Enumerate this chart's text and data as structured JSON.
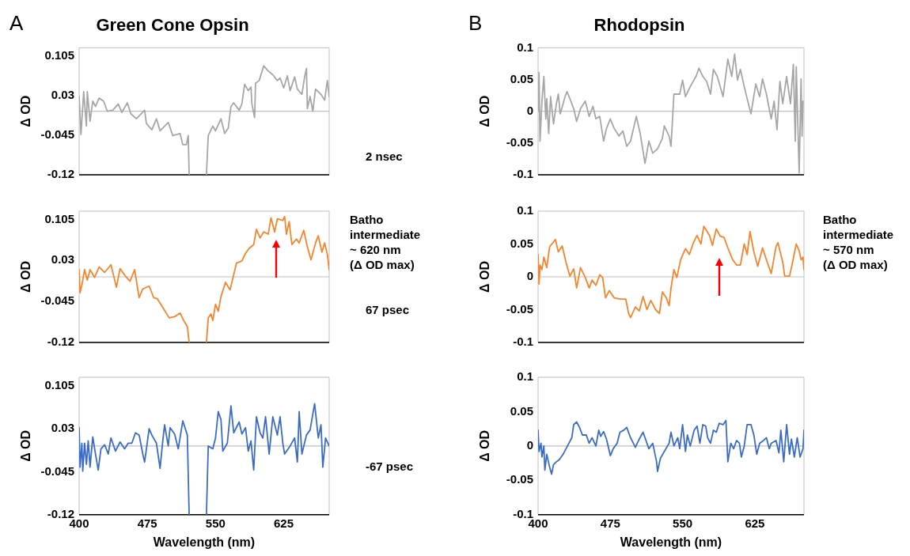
{
  "chart_data": [
    {
      "type": "line",
      "title": "Green Cone Opsin",
      "ylabel": "Δ OD",
      "color": "#a6a6a6",
      "tick_labels": "y",
      "xlim": [
        400,
        675
      ],
      "xticks": [
        400,
        475,
        550,
        625
      ],
      "ylim": [
        -0.12,
        0.12
      ],
      "yticks": [
        -0.12,
        -0.045,
        0.03,
        0.105
      ],
      "ref_lines": [
        {
          "axis": "y",
          "value": 0,
          "color": "#bfbfbf"
        }
      ],
      "annotations": [
        "A",
        "2 nsec"
      ],
      "x": [
        400,
        402,
        405,
        408,
        409,
        412,
        415,
        418,
        422,
        427,
        431,
        437,
        443,
        447,
        453,
        457,
        463,
        472,
        474,
        480,
        485,
        489,
        498,
        503,
        511,
        514,
        518,
        520,
        521,
        530,
        540,
        542,
        547,
        550,
        556,
        560,
        564,
        567,
        570,
        576,
        579,
        582,
        586,
        589,
        590,
        593,
        594,
        598,
        603,
        608,
        613,
        618,
        621,
        625,
        629,
        632,
        637,
        640,
        645,
        648,
        650,
        651,
        654,
        657,
        660,
        666,
        670,
        673,
        675
      ],
      "values": [
        0.028,
        -0.044,
        0.037,
        -0.028,
        0.037,
        -0.019,
        0.019,
        0.009,
        0.025,
        0.019,
        0,
        0.002,
        0.014,
        -0.002,
        0.016,
        -0.005,
        -0.014,
        0.002,
        -0.023,
        -0.035,
        -0.014,
        -0.037,
        -0.021,
        -0.046,
        -0.042,
        -0.063,
        -0.063,
        -0.046,
        -0.12,
        null,
        -0.12,
        -0.046,
        -0.028,
        -0.037,
        -0.014,
        -0.042,
        -0.032,
        0.009,
        0.016,
        0.002,
        0.014,
        0.051,
        0.039,
        0.046,
        0.014,
        -0.012,
        0.053,
        0.058,
        0.086,
        0.076,
        0.069,
        0.058,
        0.063,
        0.044,
        0.067,
        0.039,
        0.065,
        0.042,
        0.032,
        0.065,
        0.081,
        0.005,
        0.028,
        0,
        0.042,
        0.032,
        0.021,
        0.058,
        0.028
      ]
    },
    {
      "type": "line",
      "title": "Rhodopsin",
      "ylabel": "Δ OD",
      "color": "#a6a6a6",
      "tick_labels": "y",
      "xlim": [
        400,
        676
      ],
      "xticks": [
        400,
        475,
        550,
        625
      ],
      "ylim": [
        -0.1,
        0.1
      ],
      "yticks": [
        -0.1,
        -0.05,
        0,
        0.05,
        0.1
      ],
      "ref_lines": [
        {
          "axis": "y",
          "value": 0,
          "color": "#bfbfbf"
        }
      ],
      "annotations": [
        "B"
      ],
      "x": [
        400,
        401,
        402,
        404,
        406,
        408,
        409,
        411,
        413,
        416,
        419,
        421,
        423,
        428,
        430,
        433,
        437,
        440,
        444,
        449,
        453,
        457,
        460,
        464,
        468,
        471,
        475,
        479,
        484,
        488,
        492,
        496,
        502,
        506,
        511,
        515,
        519,
        524,
        529,
        531,
        536,
        538,
        541,
        547,
        550,
        553,
        558,
        564,
        567,
        571,
        575,
        579,
        582,
        586,
        592,
        597,
        601,
        604,
        607,
        610,
        614,
        617,
        621,
        626,
        630,
        633,
        637,
        642,
        645,
        648,
        651,
        654,
        658,
        662,
        665,
        667,
        668,
        671,
        673,
        674,
        675
      ],
      "values": [
        0,
        0.061,
        -0.047,
        0.016,
        0.055,
        -0.012,
        0.02,
        -0.035,
        0.023,
        -0.02,
        0.012,
        0.027,
        -0.004,
        0.023,
        0.031,
        0.02,
        0.004,
        -0.016,
        0.004,
        0.016,
        -0.008,
        0.008,
        -0.012,
        -0.008,
        -0.047,
        -0.027,
        -0.012,
        -0.027,
        -0.039,
        -0.031,
        -0.055,
        -0.047,
        -0.008,
        -0.035,
        -0.082,
        -0.047,
        -0.066,
        -0.059,
        -0.043,
        -0.023,
        -0.039,
        -0.055,
        0.027,
        0.027,
        0.049,
        0.023,
        0.039,
        0.055,
        0.068,
        0.055,
        0.047,
        0.027,
        0.066,
        0.055,
        0.023,
        0.082,
        0.055,
        0.09,
        0.049,
        0.066,
        0.039,
        0.02,
        -0.004,
        0.043,
        0.023,
        0.051,
        0.027,
        -0.012,
        0.016,
        -0.029,
        0.047,
        0.012,
        0.055,
        0.012,
        0.074,
        -0.047,
        0.07,
        -0.097,
        0.051,
        -0.039,
        0.016
      ]
    },
    {
      "type": "line",
      "ylabel": "Δ OD",
      "color": "#f5842c",
      "tick_labels": "y",
      "xlim": [
        400,
        675
      ],
      "xticks": [
        400,
        475,
        550,
        625
      ],
      "ylim": [
        -0.12,
        0.12
      ],
      "yticks": [
        -0.12,
        -0.045,
        0.03,
        0.105
      ],
      "ref_lines": [
        {
          "axis": "y",
          "value": 0,
          "color": "#bfbfbf"
        }
      ],
      "annotations": [
        "Batho\nintermediate\n~ 620 nm\n(Δ OD max)",
        "67 psec"
      ],
      "x": [
        400,
        401,
        403,
        406,
        409,
        412,
        417,
        422,
        428,
        435,
        441,
        445,
        451,
        456,
        461,
        466,
        470,
        477,
        482,
        486,
        492,
        499,
        505,
        511,
        515,
        519,
        521,
        530,
        540,
        542,
        545,
        547,
        550,
        553,
        556,
        561,
        566,
        570,
        573,
        579,
        583,
        587,
        592,
        595,
        599,
        603,
        608,
        611,
        615,
        618,
        624,
        626,
        628,
        631,
        634,
        639,
        642,
        647,
        651,
        655,
        660,
        663,
        667,
        670,
        673,
        675
      ],
      "values": [
        0.013,
        -0.029,
        -0.015,
        0.013,
        -0.006,
        0.013,
        -0.001,
        0.018,
        0.008,
        0.022,
        -0.019,
        0.015,
        0.001,
        -0.008,
        0.013,
        -0.038,
        -0.022,
        -0.017,
        -0.038,
        -0.04,
        -0.056,
        -0.075,
        -0.073,
        -0.066,
        -0.08,
        -0.091,
        -0.12,
        null,
        -0.12,
        -0.075,
        -0.068,
        -0.08,
        -0.05,
        -0.063,
        -0.036,
        -0.01,
        -0.024,
        0.004,
        0.025,
        0.029,
        0.043,
        0.052,
        0.059,
        0.087,
        0.071,
        0.082,
        0.078,
        0.108,
        0.082,
        0.106,
        0.103,
        0.11,
        0.078,
        0.101,
        0.059,
        0.069,
        0.062,
        0.085,
        0.055,
        0.031,
        0.062,
        0.075,
        0.045,
        0.062,
        0.041,
        0.013
      ]
    },
    {
      "type": "line",
      "ylabel": "Δ OD",
      "color": "#f5842c",
      "tick_labels": "y",
      "xlim": [
        400,
        676
      ],
      "xticks": [
        400,
        475,
        550,
        625
      ],
      "ylim": [
        -0.1,
        0.1
      ],
      "yticks": [
        -0.1,
        -0.05,
        0,
        0.05,
        0.1
      ],
      "ref_lines": [
        {
          "axis": "y",
          "value": 0,
          "color": "#bfbfbf"
        }
      ],
      "annotations": [
        "Batho\nintermediate\n~ 570 nm\n(Δ OD max)"
      ],
      "x": [
        400,
        401,
        402,
        404,
        406,
        409,
        412,
        416,
        418,
        421,
        425,
        429,
        433,
        437,
        440,
        444,
        449,
        453,
        456,
        460,
        464,
        467,
        470,
        474,
        479,
        485,
        491,
        494,
        496,
        501,
        505,
        509,
        513,
        517,
        522,
        526,
        529,
        533,
        536,
        538,
        541,
        544,
        548,
        553,
        557,
        561,
        565,
        569,
        572,
        578,
        581,
        585,
        589,
        593,
        597,
        602,
        606,
        610,
        614,
        617,
        620,
        624,
        628,
        633,
        637,
        642,
        647,
        649,
        654,
        656,
        661,
        663,
        668,
        671,
        673,
        675,
        676
      ],
      "values": [
        0.034,
        -0.011,
        0.018,
        0.011,
        0.03,
        0.014,
        0.046,
        0.053,
        0.057,
        0.038,
        0.047,
        0.022,
        0.001,
        0.012,
        -0.017,
        0.014,
        -0.001,
        -0.017,
        -0.005,
        -0.013,
        0.003,
        -0.001,
        -0.032,
        -0.021,
        -0.032,
        -0.034,
        -0.034,
        -0.056,
        -0.062,
        -0.046,
        -0.052,
        -0.03,
        -0.05,
        -0.036,
        -0.05,
        -0.056,
        -0.023,
        -0.032,
        -0.044,
        -0.017,
        0.011,
        -0.001,
        0.026,
        0.043,
        0.034,
        0.051,
        0.063,
        0.05,
        0.077,
        0.063,
        0.048,
        0.073,
        0.062,
        0.06,
        0.044,
        0.026,
        0.018,
        0.018,
        0.05,
        0.034,
        0.069,
        0.038,
        0.016,
        0.044,
        0.026,
        0.005,
        0.046,
        0.052,
        0.022,
        0.001,
        0.001,
        0.014,
        0.05,
        0.04,
        0.026,
        0.03,
        0.011
      ]
    },
    {
      "type": "line",
      "ylabel": "Δ OD",
      "xlabel": "Wavelength (nm)",
      "color": "#3a6cc4",
      "xlim": [
        400,
        675
      ],
      "xticks": [
        400,
        475,
        550,
        625
      ],
      "ylim": [
        -0.12,
        0.12
      ],
      "yticks": [
        -0.12,
        -0.045,
        0.03,
        0.105
      ],
      "ref_lines": [
        {
          "axis": "y",
          "value": 0,
          "color": "#bfbfbf"
        }
      ],
      "annotations": [
        "-67 psec"
      ],
      "x": [
        400,
        401,
        403,
        404,
        406,
        408,
        410,
        412,
        415,
        418,
        421,
        424,
        428,
        432,
        435,
        440,
        445,
        450,
        454,
        458,
        462,
        466,
        470,
        472,
        474,
        477,
        480,
        485,
        489,
        492,
        494,
        498,
        500,
        505,
        509,
        514,
        519,
        521,
        530,
        540,
        542,
        547,
        550,
        553,
        556,
        558,
        563,
        567,
        570,
        576,
        579,
        583,
        586,
        589,
        592,
        595,
        599,
        602,
        605,
        609,
        613,
        618,
        621,
        624,
        626,
        632,
        637,
        640,
        642,
        645,
        650,
        654,
        659,
        663,
        666,
        668,
        671,
        675
      ],
      "values": [
        0.032,
        -0.037,
        0.005,
        -0.044,
        0.005,
        -0.032,
        0.009,
        -0.037,
        0.016,
        -0.014,
        -0.042,
        -0.005,
        0.002,
        -0.014,
        0.014,
        -0.009,
        0.007,
        -0.005,
        0.005,
        0.005,
        0.023,
        0.019,
        -0.014,
        -0.028,
        -0.005,
        0.03,
        0.019,
        0.005,
        -0.039,
        0.009,
        0.037,
        0,
        0.032,
        0.021,
        -0.005,
        0.044,
        0.019,
        -0.12,
        null,
        -0.12,
        0,
        -0.005,
        0.014,
        0.06,
        0.046,
        -0.009,
        0.005,
        0.07,
        0.023,
        0.042,
        0.021,
        0.032,
        -0.009,
        0.009,
        -0.042,
        0.051,
        0.023,
        0.014,
        0.051,
        -0.014,
        0.051,
        0.019,
        0.051,
        0.005,
        -0.014,
        0,
        0.014,
        -0.028,
        0.06,
        -0.014,
        0.019,
        0.028,
        0.074,
        0.014,
        0.037,
        -0.037,
        0.014,
        0
      ]
    },
    {
      "type": "line",
      "ylabel": "Δ OD",
      "xlabel": "Wavelength (nm)",
      "color": "#3a6cc4",
      "xlim": [
        400,
        676
      ],
      "xticks": [
        400,
        475,
        550,
        625
      ],
      "ylim": [
        -0.1,
        0.1
      ],
      "yticks": [
        -0.1,
        -0.05,
        0,
        0.05,
        0.1
      ],
      "ref_lines": [
        {
          "axis": "y",
          "value": 0,
          "color": "#bfbfbf"
        }
      ],
      "x": [
        400,
        401,
        403,
        404,
        406,
        407,
        409,
        412,
        414,
        416,
        419,
        422,
        426,
        429,
        432,
        435,
        437,
        440,
        443,
        446,
        450,
        453,
        456,
        460,
        463,
        465,
        468,
        471,
        475,
        478,
        482,
        485,
        489,
        492,
        496,
        501,
        505,
        509,
        512,
        515,
        519,
        523,
        524,
        527,
        531,
        536,
        538,
        541,
        545,
        547,
        550,
        553,
        555,
        558,
        562,
        565,
        568,
        571,
        574,
        576,
        579,
        582,
        585,
        588,
        592,
        595,
        597,
        600,
        603,
        606,
        609,
        611,
        614,
        617,
        621,
        624,
        627,
        630,
        634,
        637,
        640,
        642,
        647,
        650,
        652,
        655,
        658,
        661,
        663,
        666,
        669,
        672,
        675,
        676
      ],
      "values": [
        0.023,
        -0.008,
        0.004,
        -0.016,
        0,
        -0.035,
        -0.012,
        -0.031,
        -0.041,
        -0.027,
        -0.023,
        -0.02,
        -0.012,
        -0.004,
        0.004,
        0.012,
        0.031,
        0.035,
        0.027,
        0.016,
        0.016,
        0.004,
        0.012,
        0,
        0.023,
        0.014,
        0.021,
        0.01,
        -0.014,
        -0.004,
        0.004,
        0.02,
        0.023,
        0.027,
        0.012,
        -0.002,
        0.01,
        0.02,
        0.008,
        -0.004,
        0.004,
        -0.023,
        -0.037,
        -0.018,
        -0.008,
        0.004,
        0.02,
        0,
        0.012,
        -0.004,
        0.031,
        -0.008,
        0.016,
        0,
        0.023,
        0.029,
        0.004,
        0.031,
        0.029,
        0.012,
        0.004,
        0.023,
        0.02,
        0.033,
        0.031,
        0.037,
        -0.023,
        0.004,
        -0.004,
        0.008,
        0.004,
        -0.016,
        0,
        0.031,
        0.031,
        0.016,
        -0.012,
        0.004,
        0.008,
        0.012,
        -0.004,
        0.004,
        0.008,
        -0.01,
        0.023,
        -0.023,
        0.031,
        -0.012,
        0.01,
        -0.016,
        0.012,
        -0.016,
        -0.004,
        0.023
      ]
    }
  ]
}
